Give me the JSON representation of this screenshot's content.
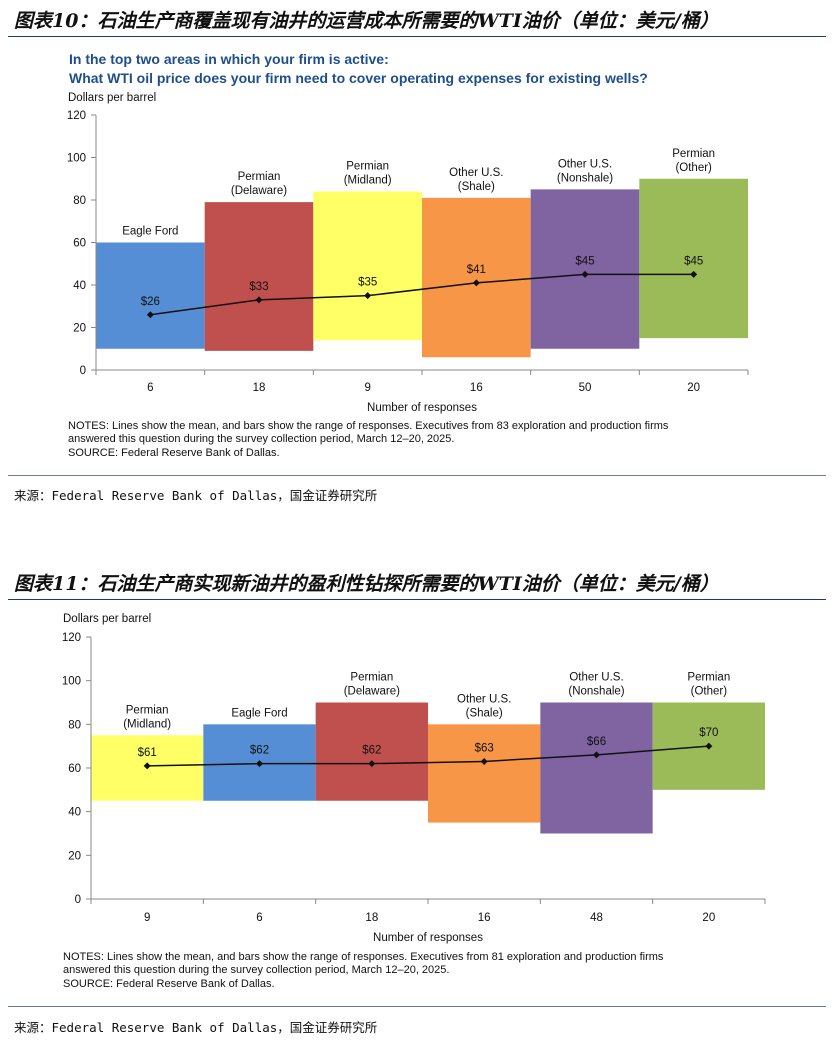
{
  "figures": [
    {
      "fig_title": "图表10：石油生产商覆盖现有油井的运营成本所需要的WTI油价（单位：美元/桶）",
      "source_line": "来源：Federal Reserve Bank of Dallas，国金证券研究所"
    },
    {
      "fig_title": "图表11：石油生产商实现新油井的盈利性钻探所需要的WTI油价（单位：美元/桶）",
      "source_line": "来源：Federal Reserve Bank of Dallas，国金证券研究所"
    }
  ],
  "chart_data": [
    {
      "type": "bar",
      "title_lines": [
        "In the top two areas in which your firm is active:",
        "What WTI oil price does your firm need to cover operating expenses for existing wells?"
      ],
      "ylabel": "Dollars per barrel",
      "xlabel": "Number of responses",
      "ylim": [
        0,
        120
      ],
      "yticks": [
        0,
        20,
        40,
        60,
        80,
        100,
        120
      ],
      "notes": [
        "NOTES: Lines show the mean, and bars show the range of responses. Executives from 83 exploration and production firms",
        "answered this question during the survey collection period, March 12–20, 2025.",
        "SOURCE: Federal Reserve Bank of Dallas."
      ],
      "categories": [
        {
          "label": [
            "Eagle Ford"
          ],
          "responses": "6",
          "low": 10,
          "high": 60,
          "mean": 26,
          "mean_label": "$26",
          "color": "#558ed5"
        },
        {
          "label": [
            "Permian",
            "(Delaware)"
          ],
          "responses": "18",
          "low": 9,
          "high": 79,
          "mean": 33,
          "mean_label": "$33",
          "color": "#c0504d"
        },
        {
          "label": [
            "Permian",
            "(Midland)"
          ],
          "responses": "9",
          "low": 14,
          "high": 84,
          "mean": 35,
          "mean_label": "$35",
          "color": "#ffff66"
        },
        {
          "label": [
            "Other U.S.",
            "(Shale)"
          ],
          "responses": "16",
          "low": 6,
          "high": 81,
          "mean": 41,
          "mean_label": "$41",
          "color": "#f79646"
        },
        {
          "label": [
            "Other U.S.",
            "(Nonshale)"
          ],
          "responses": "50",
          "low": 10,
          "high": 85,
          "mean": 45,
          "mean_label": "$45",
          "color": "#8064a2"
        },
        {
          "label": [
            "Permian",
            "(Other)"
          ],
          "responses": "20",
          "low": 15,
          "high": 90,
          "mean": 45,
          "mean_label": "$45",
          "color": "#9bbb59"
        }
      ]
    },
    {
      "type": "bar",
      "title_lines": [],
      "ylabel": "Dollars per barrel",
      "xlabel": "Number of responses",
      "ylim": [
        0,
        120
      ],
      "yticks": [
        0,
        20,
        40,
        60,
        80,
        100,
        120
      ],
      "notes": [
        "NOTES: Lines show the mean, and bars show the range of responses. Executives from 81 exploration and production firms",
        "answered this question during the survey collection period, March 12–20, 2025.",
        "SOURCE: Federal Reserve Bank of Dallas."
      ],
      "categories": [
        {
          "label": [
            "Permian",
            "(Midland)"
          ],
          "responses": "9",
          "low": 45,
          "high": 75,
          "mean": 61,
          "mean_label": "$61",
          "color": "#ffff66"
        },
        {
          "label": [
            "Eagle Ford"
          ],
          "responses": "6",
          "low": 45,
          "high": 80,
          "mean": 62,
          "mean_label": "$62",
          "color": "#558ed5"
        },
        {
          "label": [
            "Permian",
            "(Delaware)"
          ],
          "responses": "18",
          "low": 45,
          "high": 90,
          "mean": 62,
          "mean_label": "$62",
          "color": "#c0504d"
        },
        {
          "label": [
            "Other U.S.",
            "(Shale)"
          ],
          "responses": "16",
          "low": 35,
          "high": 80,
          "mean": 63,
          "mean_label": "$63",
          "color": "#f79646"
        },
        {
          "label": [
            "Other U.S.",
            "(Nonshale)"
          ],
          "responses": "48",
          "low": 30,
          "high": 90,
          "mean": 66,
          "mean_label": "$66",
          "color": "#8064a2"
        },
        {
          "label": [
            "Permian",
            "(Other)"
          ],
          "responses": "20",
          "low": 50,
          "high": 90,
          "mean": 70,
          "mean_label": "$70",
          "color": "#9bbb59"
        }
      ]
    }
  ]
}
